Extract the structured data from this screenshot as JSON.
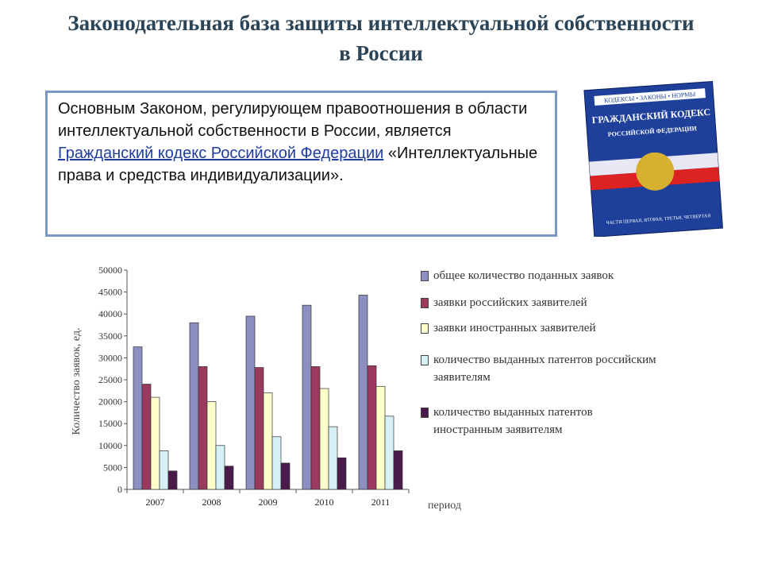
{
  "slide": {
    "title": "Законодательная база защиты интеллектуальной собственности в России",
    "text_before": "Основным Законом, регулирующем правоотношения в области интеллектуальной собственности в России, является",
    "link": "Гражданский кодекс Российской Федерации",
    "text_after": "«Интеллектуальные права и средства индивидуализации»."
  },
  "book": {
    "top": "КОДЕКСЫ • ЗАКОНЫ • НОРМЫ",
    "title": "ГРАЖДАНСКИЙ КОДЕКС",
    "subtitle": "РОССИЙСКОЙ ФЕДЕРАЦИИ",
    "bottom": "ЧАСТИ ПЕРВАЯ, ВТОРАЯ, ТРЕТЬЯ, ЧЕТВЕРТАЯ"
  },
  "chart_data": {
    "type": "bar",
    "categories": [
      "2007",
      "2008",
      "2009",
      "2010",
      "2011"
    ],
    "series": [
      {
        "name": "общее количество поданных заявок",
        "color": "#8c8fc2",
        "values": [
          32500,
          38000,
          39500,
          42000,
          44300
        ]
      },
      {
        "name": "заявки российских заявителей",
        "color": "#9b3a5e",
        "values": [
          24000,
          28000,
          27800,
          28000,
          28200
        ]
      },
      {
        "name": "заявки иностранных заявителей",
        "color": "#ffffcc",
        "values": [
          21000,
          20000,
          22000,
          23000,
          23500
        ]
      },
      {
        "name": "количество выданных патентов российским заявителям",
        "color": "#d6f1f5",
        "values": [
          8800,
          10000,
          12000,
          14300,
          16700
        ]
      },
      {
        "name": "количество выданных патентов иностранным заявителям",
        "color": "#4a1a4a",
        "values": [
          4200,
          5300,
          6000,
          7200,
          8800
        ]
      }
    ],
    "ylim": [
      0,
      50000
    ],
    "yticks": [
      0,
      5000,
      10000,
      15000,
      20000,
      25000,
      30000,
      35000,
      40000,
      45000,
      50000
    ],
    "y_label": "Количество заявок, ед.",
    "x_label": "период"
  }
}
